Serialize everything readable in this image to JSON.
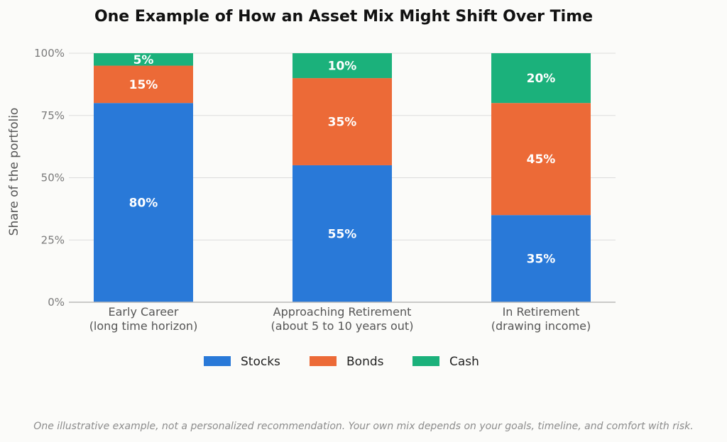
{
  "chart_data": {
    "type": "bar",
    "stacked": true,
    "title": "One Example of How an Asset Mix Might Shift Over Time",
    "ylabel": "Share of the portfolio",
    "xlabel": "",
    "categories": [
      [
        "Early Career",
        "(long time horizon)"
      ],
      [
        "Approaching Retirement",
        "(about 5 to 10 years out)"
      ],
      [
        "In Retirement",
        "(drawing income)"
      ]
    ],
    "series": [
      {
        "name": "Stocks",
        "color": "#2979d8",
        "values": [
          80,
          55,
          35
        ],
        "labels": [
          "80%",
          "55%",
          "35%"
        ]
      },
      {
        "name": "Bonds",
        "color": "#ec6a37",
        "values": [
          15,
          35,
          45
        ],
        "labels": [
          "15%",
          "35%",
          "45%"
        ]
      },
      {
        "name": "Cash",
        "color": "#1bb17b",
        "values": [
          5,
          10,
          20
        ],
        "labels": [
          "5%",
          "10%",
          "20%"
        ]
      }
    ],
    "ylim": [
      0,
      100
    ],
    "yticks": [
      {
        "value": 0,
        "label": "0%"
      },
      {
        "value": 25,
        "label": "25%"
      },
      {
        "value": 50,
        "label": "50%"
      },
      {
        "value": 75,
        "label": "75%"
      },
      {
        "value": 100,
        "label": "100%"
      }
    ],
    "grid": true,
    "legend_position": "bottom"
  },
  "footnote": "One illustrative example, not a personalized recommendation. Your own mix depends on your goals, timeline, and comfort with risk."
}
